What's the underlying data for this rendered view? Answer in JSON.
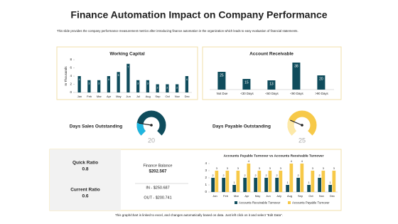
{
  "header": {
    "title": "Finance Automation Impact on Company Performance",
    "subtitle": "This slide provides the company performance measurement metrics after introducing finance automation in the organization which leads to easy evaluation of financial statements."
  },
  "kpis": {
    "quick_ratio_label": "Quick Ratio",
    "quick_ratio": "0.8",
    "current_ratio_label": "Current Ratio",
    "current_ratio": "0.6",
    "finance_balance_label": "Finance Balance",
    "finance_balance": "$202.567",
    "in": "IN - $250.687",
    "out": "OUT - $200.741"
  },
  "footer": "This graph/chart is linked to excel, and changes automatically based on data. Just left click on it and select \"Edit Data\".",
  "chart_data": [
    {
      "type": "bar",
      "title": "Working Capital",
      "y_label": "In Thousands",
      "categories": [
        "Jan",
        "Feb",
        "Mar",
        "Apr",
        "May",
        "Jun",
        "Jul",
        "Aug",
        "Sep",
        "Oct",
        "Nov",
        "Dec"
      ],
      "values": [
        4,
        3,
        3,
        4,
        5,
        7,
        3,
        3,
        2,
        2,
        2,
        4
      ],
      "color": "#0f4c5c",
      "ylim": [
        0,
        8
      ],
      "yticks": [
        0,
        2,
        4,
        6,
        8
      ]
    },
    {
      "type": "bar",
      "title": "Account Receivable",
      "categories": [
        "Not Due",
        "<30 Days",
        "<60 Days",
        "<90 Days",
        ">90 Days"
      ],
      "values": [
        25,
        15,
        13,
        38,
        20
      ],
      "color": "#0f4c5c",
      "ylim": [
        0,
        40
      ]
    },
    {
      "type": "gauge",
      "title": "Days Sales Outstanding",
      "value": 20,
      "lim": [
        0,
        100
      ],
      "color": "#0f4c5c",
      "accent": "#1fb6e0"
    },
    {
      "type": "gauge",
      "title": "Days Payable Outstanding",
      "value": 25,
      "lim": [
        0,
        100
      ],
      "color": "#f7c948",
      "accent": "#fde9a8"
    },
    {
      "type": "bar",
      "title": "Accounts Payable Turnover vs Accounts Receivable Turnover",
      "categories": [
        "Jan",
        "Feb",
        "Mar",
        "Apr",
        "May",
        "Jun",
        "July",
        "Aug",
        "Sep",
        "Oct",
        "Nov",
        "Dec"
      ],
      "series": [
        {
          "name": "Accounts Receivable Turnover",
          "color": "#0f4c5c",
          "values": [
            2,
            2,
            1,
            2,
            2,
            2,
            2,
            1,
            2,
            1,
            2,
            1
          ]
        },
        {
          "name": "Accounts Payable Turnover",
          "color": "#f7c948",
          "values": [
            3,
            3,
            3,
            4,
            3,
            3,
            3,
            4,
            4,
            3,
            3,
            3
          ]
        }
      ],
      "ylim": [
        0,
        4
      ],
      "yticks": [
        0,
        1,
        2,
        3,
        4
      ],
      "legend": "bottom"
    }
  ]
}
